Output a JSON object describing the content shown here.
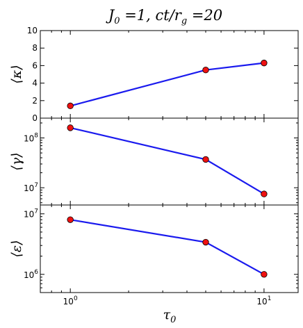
{
  "chart_data": {
    "type": "line",
    "title": "J₀ = 1, ct/r_g = 20",
    "xlabel": "τ₀",
    "xscale": "log",
    "xlim": [
      0.7,
      15
    ],
    "xticks": [
      {
        "value": 1,
        "base": "10",
        "exp": "0"
      },
      {
        "value": 10,
        "base": "10",
        "exp": "1"
      }
    ],
    "colors": {
      "line": "#1a1aee",
      "marker": "#ee1111",
      "marker_edge": "#000000"
    },
    "panels": [
      {
        "ylabel": "⟨κ⟩",
        "yscale": "linear",
        "ylim": [
          0,
          10
        ],
        "yticks": [
          {
            "value": 0,
            "label": "0"
          },
          {
            "value": 2,
            "label": "2"
          },
          {
            "value": 4,
            "label": "4"
          },
          {
            "value": 6,
            "label": "6"
          },
          {
            "value": 8,
            "label": "8"
          },
          {
            "value": 10,
            "label": "10"
          }
        ],
        "x": [
          1,
          5,
          10
        ],
        "y": [
          1.4,
          5.5,
          6.3
        ]
      },
      {
        "ylabel": "⟨γ⟩",
        "yscale": "log",
        "ylim": [
          4500000,
          250000000
        ],
        "yticks": [
          {
            "value": 10000000,
            "base": "10",
            "exp": "7"
          },
          {
            "value": 100000000,
            "base": "10",
            "exp": "8"
          }
        ],
        "x": [
          1,
          5,
          10
        ],
        "y": [
          160000000,
          37000000,
          7500000
        ]
      },
      {
        "ylabel": "⟨ε⟩",
        "yscale": "log",
        "ylim": [
          500000,
          14000000
        ],
        "yticks": [
          {
            "value": 1000000,
            "base": "10",
            "exp": "6"
          },
          {
            "value": 10000000,
            "base": "10",
            "exp": "7"
          }
        ],
        "x": [
          1,
          5,
          10
        ],
        "y": [
          8000000,
          3400000,
          1000000
        ]
      }
    ]
  }
}
